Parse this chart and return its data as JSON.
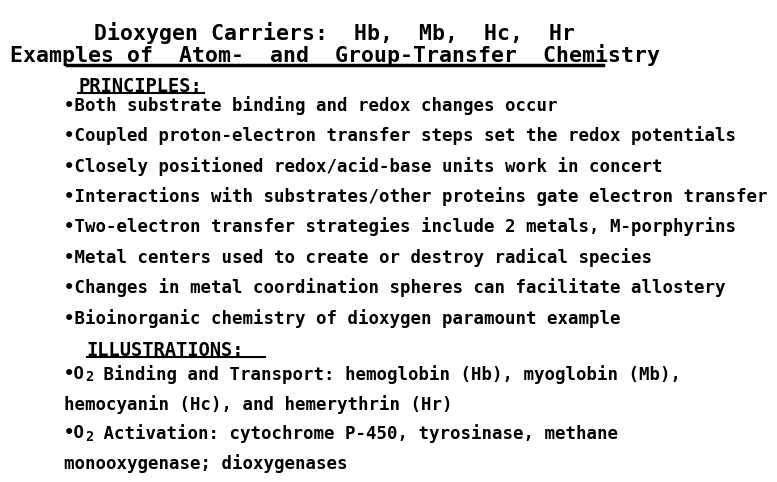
{
  "title_line1": "Dioxygen Carriers:  Hb,  Mb,  Hc,  Hr",
  "title_line2": "Examples of  Atom-  and  Group-Transfer  Chemistry",
  "principles_label": "PRINCIPLES:",
  "principles_bullets": [
    "•Both substrate binding and redox changes occur",
    "•Coupled proton-electron transfer steps set the redox potentials",
    "•Closely positioned redox/acid-base units work in concert",
    "•Interactions with substrates/other proteins gate electron transfer",
    "•Two-electron transfer strategies include 2 metals, M-porphyrins",
    "•Metal centers used to create or destroy radical species",
    "•Changes in metal coordination spheres can facilitate allostery",
    "•Bioinorganic chemistry of dioxygen paramount example"
  ],
  "illustrations_label": "ILLUSTRATIONS:",
  "bg_color": "#ffffff",
  "text_color": "#000000",
  "title_fontsize": 15.5,
  "section_fontsize": 13.5,
  "bullet_fontsize": 12.5
}
